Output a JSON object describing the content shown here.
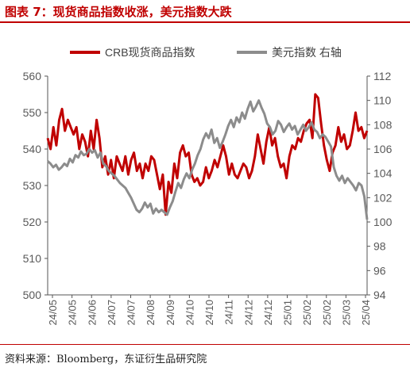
{
  "figure": {
    "title": "图表 7：现货商品指数收涨，美元指数大跌",
    "source": "资料来源：Bloomberg，东证衍生品研究院"
  },
  "chart_data": {
    "type": "line",
    "grid": false,
    "legend_position": "top",
    "x_ticks": [
      "24/05",
      "24/05",
      "24/06",
      "24/07",
      "24/07",
      "24/08",
      "24/09",
      "24/10",
      "24/10",
      "24/11",
      "24/12",
      "24/12",
      "25/01",
      "25/02",
      "25/02",
      "25/03",
      "25/04"
    ],
    "y_left": {
      "ticks": [
        "500",
        "510",
        "520",
        "530",
        "540",
        "550",
        "560"
      ],
      "lim": [
        500,
        560
      ]
    },
    "y_right": {
      "ticks": [
        "94",
        "96",
        "98",
        "100",
        "102",
        "104",
        "106",
        "108",
        "110",
        "112"
      ],
      "lim": [
        94,
        112
      ]
    },
    "series": [
      {
        "name": "CRB现货商品指数",
        "axis": "left",
        "color": "#c00000",
        "values": [
          543,
          540,
          546,
          541,
          548,
          551,
          545,
          548,
          546,
          544,
          546,
          540,
          544,
          542,
          538,
          545,
          540,
          548,
          543,
          535,
          538,
          533,
          537,
          532,
          538,
          536,
          534,
          538,
          533,
          537,
          539,
          534,
          536,
          532,
          536,
          534,
          538,
          537,
          533,
          529,
          533,
          522,
          531,
          528,
          536,
          532,
          539,
          541,
          538,
          539,
          533,
          531,
          532,
          530,
          531,
          535,
          532,
          534,
          537,
          535,
          538,
          541,
          538,
          533,
          536,
          533,
          532,
          534,
          536,
          535,
          532,
          534,
          538,
          544,
          540,
          536,
          542,
          546,
          541,
          543,
          538,
          535,
          536,
          532,
          538,
          541,
          540,
          543,
          542,
          545,
          547,
          548,
          543,
          555,
          554,
          547,
          541,
          537,
          534,
          539,
          541,
          546,
          542,
          544,
          540,
          541,
          545,
          550,
          545,
          546,
          543,
          545
        ]
      },
      {
        "name": "美元指数 右轴",
        "axis": "right",
        "color": "#8c8c8c",
        "values": [
          105.0,
          104.8,
          104.5,
          104.7,
          104.3,
          104.5,
          104.8,
          104.6,
          105.2,
          104.9,
          105.5,
          105.3,
          105.8,
          105.5,
          105.6,
          106.0,
          105.7,
          105.9,
          105.3,
          105.7,
          104.8,
          104.6,
          104.2,
          104.0,
          103.8,
          103.5,
          103.2,
          103.0,
          102.8,
          102.4,
          102.0,
          101.5,
          101.0,
          100.8,
          101.1,
          101.6,
          101.2,
          101.5,
          100.7,
          101.1,
          100.8,
          101.0,
          100.8,
          100.6,
          101.2,
          101.7,
          102.5,
          103.2,
          102.8,
          103.5,
          104.0,
          103.6,
          104.3,
          104.8,
          105.5,
          106.0,
          106.8,
          107.3,
          106.9,
          107.6,
          106.5,
          106.9,
          106.1,
          106.6,
          107.2,
          107.9,
          108.4,
          107.8,
          108.6,
          108.2,
          109.0,
          108.5,
          109.3,
          109.9,
          109.1,
          109.5,
          110.0,
          109.4,
          108.9,
          108.1,
          107.8,
          107.2,
          107.5,
          108.3,
          108.0,
          107.4,
          107.8,
          108.1,
          107.6,
          107.9,
          107.2,
          107.6,
          108.0,
          107.5,
          107.8,
          108.2,
          107.6,
          107.4,
          106.9,
          107.2,
          107.0,
          106.6,
          106.2,
          104.5,
          103.8,
          103.4,
          103.8,
          103.2,
          103.6,
          103.3,
          103.0,
          102.6,
          103.2,
          103.0,
          102.1,
          100.2
        ]
      }
    ]
  }
}
